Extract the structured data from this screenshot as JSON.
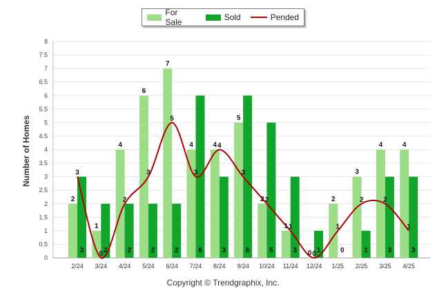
{
  "legend": {
    "for_sale_label": "For Sale",
    "sold_label": "Sold",
    "pended_label": "Pended"
  },
  "footer": {
    "copyright": "Copyright © Trendgraphix, Inc."
  },
  "colors": {
    "for_sale": "#9edd88",
    "sold": "#11a52b",
    "pended": "#b00000"
  },
  "chart_data": {
    "type": "bar",
    "ylabel": "Number of Homes",
    "ylim": [
      0,
      8
    ],
    "yticks": [
      "0",
      "0.5",
      "1",
      "1.5",
      "2",
      "2.5",
      "3",
      "3.5",
      "4",
      "4.5",
      "5",
      "5.5",
      "6",
      "6.5",
      "7",
      "7.5",
      "8"
    ],
    "categories": [
      "2/24",
      "3/24",
      "4/24",
      "5/24",
      "6/24",
      "7/24",
      "8/24",
      "9/24",
      "10/24",
      "11/24",
      "12/24",
      "1/25",
      "2/25",
      "3/25",
      "4/25"
    ],
    "series": [
      {
        "name": "For Sale",
        "type": "bar",
        "values": [
          2,
          1,
          4,
          6,
          7,
          4,
          4,
          5,
          2,
          1,
          0,
          2,
          3,
          4,
          4
        ]
      },
      {
        "name": "Sold",
        "type": "bar",
        "values": [
          3,
          2,
          2,
          2,
          2,
          6,
          3,
          6,
          5,
          3,
          1,
          0,
          1,
          3,
          3
        ]
      },
      {
        "name": "Pended",
        "type": "line",
        "values": [
          3,
          0,
          2,
          3,
          5,
          3,
          4,
          3,
          2,
          1,
          0,
          1,
          2,
          2,
          1
        ]
      }
    ],
    "grid": true,
    "legend_position": "top-center"
  }
}
